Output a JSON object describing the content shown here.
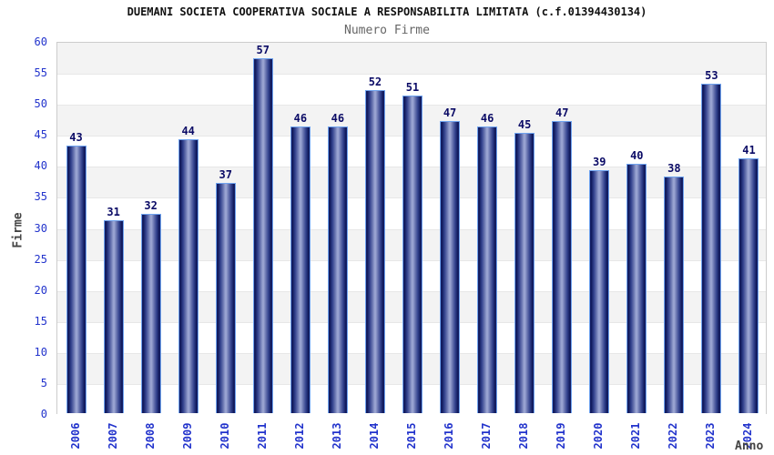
{
  "header": {
    "title": "DUEMANI SOCIETA COOPERATIVA SOCIALE A RESPONSABILITA LIMITATA (c.f.01394430134)",
    "subtitle": "Numero Firme"
  },
  "chart_data": {
    "type": "bar",
    "title": "DUEMANI SOCIETA COOPERATIVA SOCIALE A RESPONSABILITA LIMITATA (c.f.01394430134)",
    "subtitle": "Numero Firme",
    "xlabel": "Anno",
    "ylabel": "Firme",
    "categories": [
      "2006",
      "2007",
      "2008",
      "2009",
      "2010",
      "2011",
      "2012",
      "2013",
      "2014",
      "2015",
      "2016",
      "2017",
      "2018",
      "2019",
      "2020",
      "2021",
      "2022",
      "2023",
      "2024"
    ],
    "values": [
      43,
      31,
      32,
      44,
      37,
      57,
      46,
      46,
      52,
      51,
      47,
      46,
      45,
      47,
      39,
      40,
      38,
      53,
      41
    ],
    "ylim": [
      0,
      60
    ],
    "ytick_step": 5,
    "grid": "alternating-horizontal-bands",
    "legend_position": "none",
    "bar_labels_shown": true
  },
  "colors": {
    "band_gray": "#f3f3f3",
    "band_white": "#ffffff",
    "grid_line": "#e7e7e7",
    "plot_border": "#cccccc",
    "bar_border": "#6fa3ef",
    "bar_edge": "#1a2470",
    "bar_dark": "#0d1656",
    "bar_mid": "#31408c",
    "bar_mid2": "#6874b0",
    "bar_light": "#99a3d1",
    "tick_text": "#2233cc",
    "value_text": "#0b0b66",
    "axis_label_text": "#444444",
    "title_text": "#111111",
    "subtitle_text": "#666666"
  }
}
